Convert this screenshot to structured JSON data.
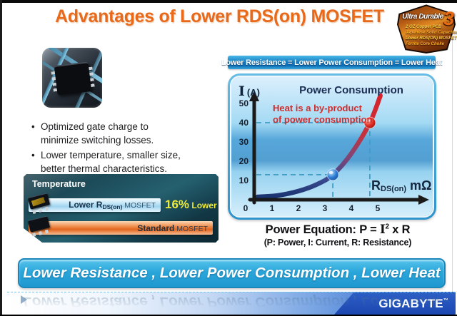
{
  "title": "Advantages of Lower RDS(on) MOSFET",
  "badge": {
    "title": "Ultra Durable",
    "number": "3",
    "features": [
      "2 OZ Copper PCB",
      "Japanese Solid Capacitor",
      "Lower RDS(ON) MOSFET",
      "Ferrite Core Choke"
    ]
  },
  "bullets": [
    [
      "Optimized gate charge to",
      "minimize switching losses."
    ],
    [
      "Lower temperature, smaller size,",
      "better thermal characteristics."
    ]
  ],
  "temperature": {
    "title": "Temperature",
    "rows": [
      {
        "name_bold": "Lower R",
        "name_sub": "DS(on)",
        "name_suffix": " MOSFET",
        "note_value": "16%",
        "note_label": " Lower"
      },
      {
        "name_bold": "Standard",
        "name_sub": "",
        "name_suffix": " MOSFET"
      }
    ]
  },
  "chart_data": {
    "type": "line",
    "header": "Lower Resistance = Lower Power Consumption = Lower Heat",
    "title": "Power Consumption",
    "ylabel_symbol": "I",
    "ylabel_unit": "(A)",
    "xlabel_main": "R",
    "xlabel_sub": "DS(on)",
    "xlabel_unit": " mΩ",
    "x_ticks": [
      0,
      1,
      2,
      3,
      4,
      5
    ],
    "y_ticks": [
      10,
      20,
      30,
      40,
      50
    ],
    "xlim": [
      0,
      5.8
    ],
    "ylim": [
      0,
      57
    ],
    "grid": false,
    "legend": false,
    "annotation_lines": [
      "Heat is a by-product",
      "of power consumption"
    ],
    "annotation_color": "#d32b2b",
    "curve": [
      [
        0.45,
        1.5
      ],
      [
        1.2,
        2.2
      ],
      [
        2.0,
        4.5
      ],
      [
        2.7,
        8
      ],
      [
        3.3,
        13
      ],
      [
        4.0,
        24
      ],
      [
        4.7,
        40
      ],
      [
        5.1,
        54
      ]
    ],
    "markers": [
      {
        "x": 3.3,
        "y": 13,
        "color": "blue"
      },
      {
        "x": 4.7,
        "y": 40,
        "color": "red"
      }
    ]
  },
  "equation": {
    "prefix": "Power Equation: P = ",
    "current_symbol": "I",
    "exponent": "2",
    "suffix": " x R",
    "legend": "(P: Power, I: Current, R: Resistance)"
  },
  "banner": "Lower Resistance , Lower Power Consumption , Lower Heat",
  "brand": "GIGABYTE",
  "brand_tm": "™",
  "colors": {
    "title_orange": "#e8691a",
    "banner_cyan": "#2aa6da",
    "header_blue": "#1a80c2",
    "highlight_yellow": "#eeea38",
    "brand_blue": "#1b47b0"
  }
}
